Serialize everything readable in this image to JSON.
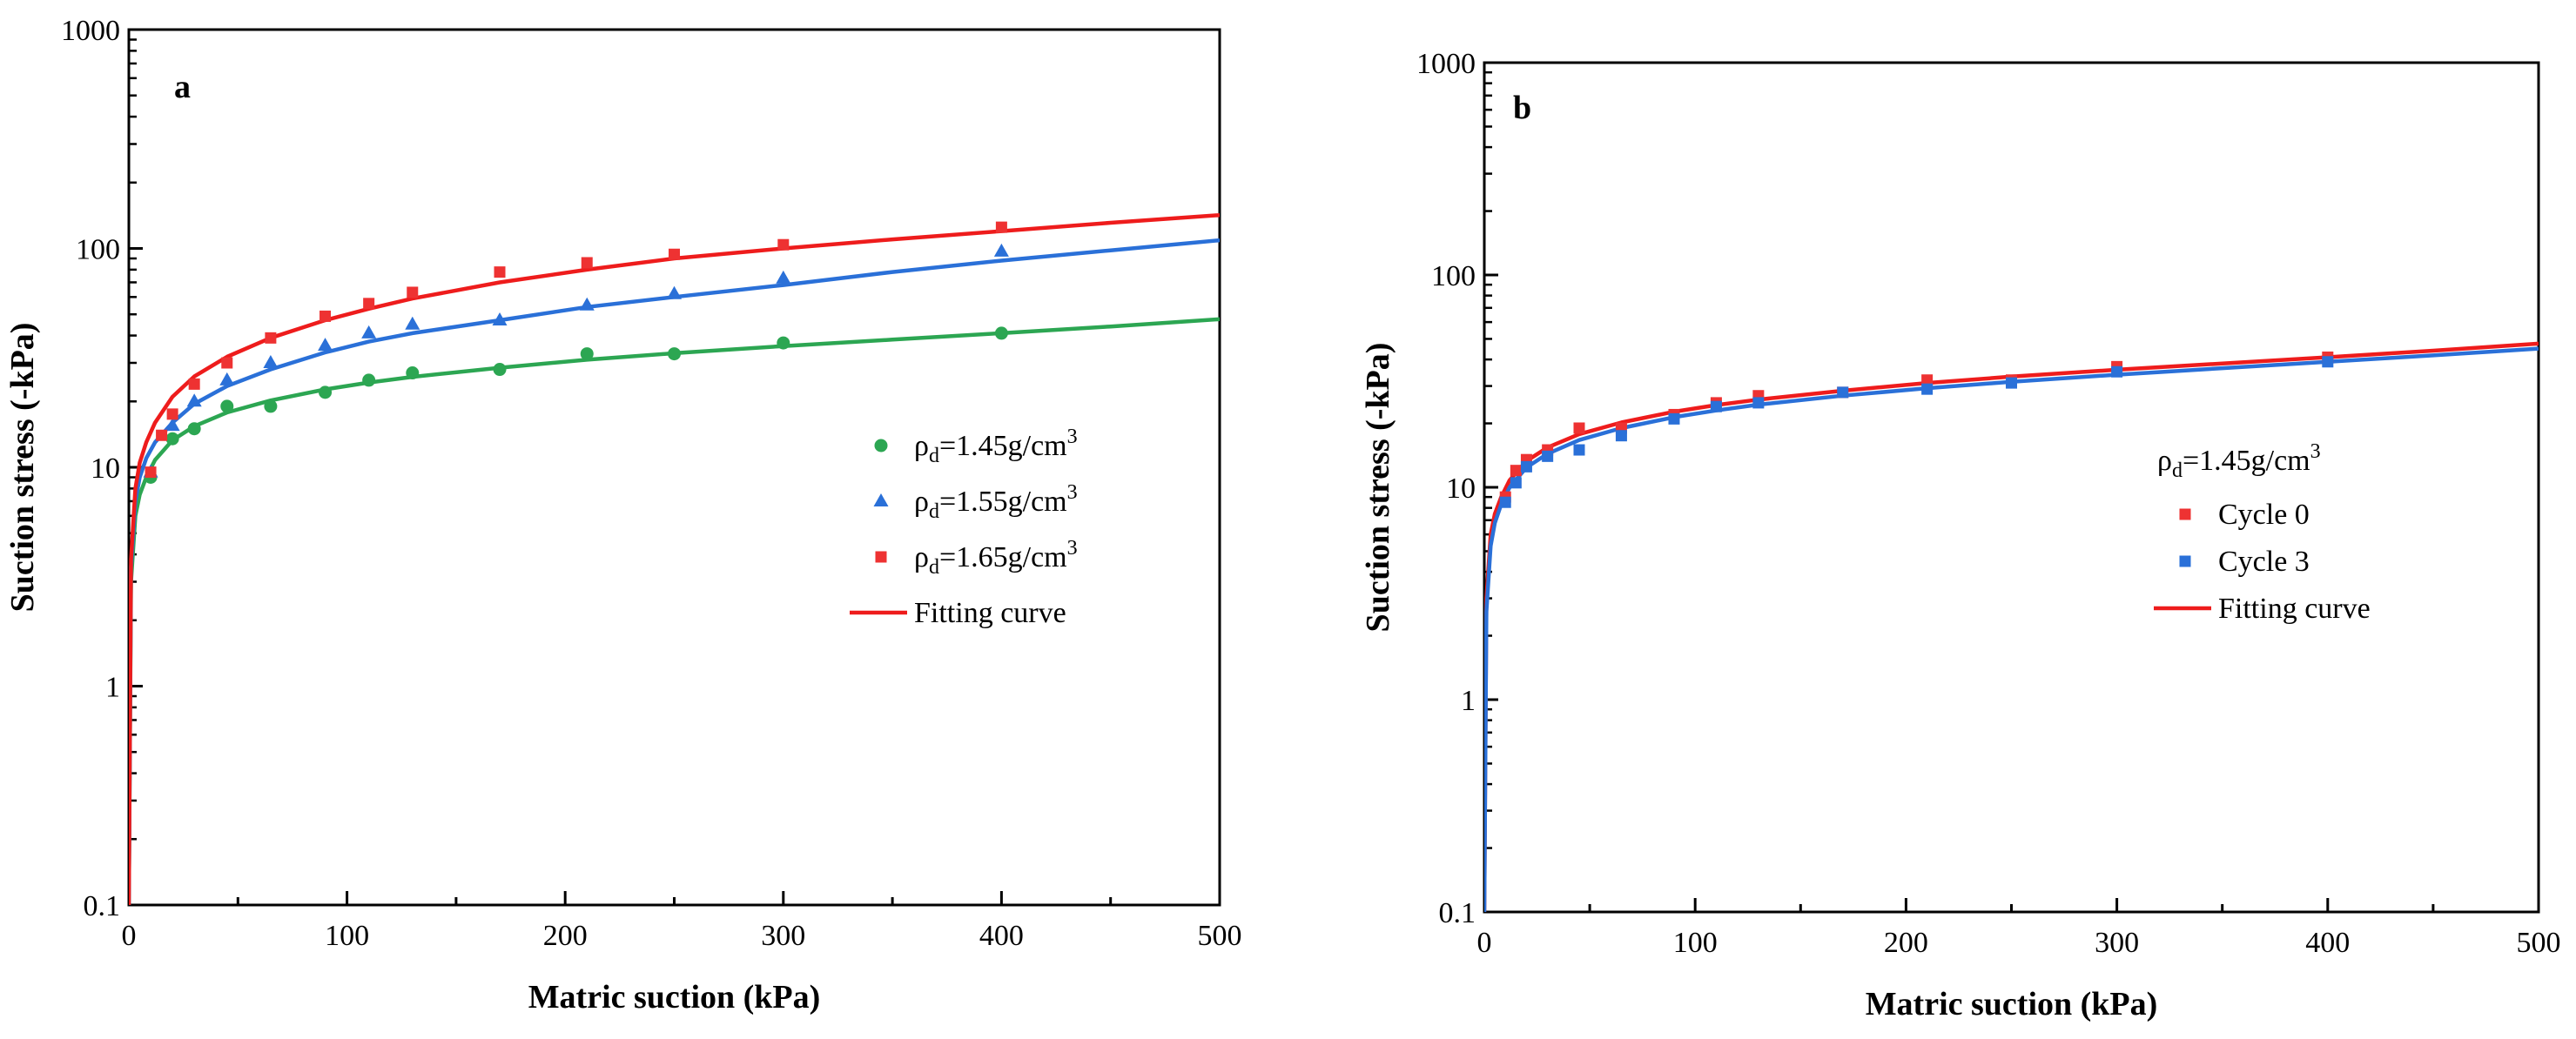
{
  "chart_data": [
    {
      "type": "scatter",
      "panel_label": "a",
      "xlabel": "Matric suction (kPa)",
      "ylabel": "Suction stress (-kPa)",
      "xlim": [
        0,
        500
      ],
      "ylim": [
        0.1,
        1000
      ],
      "yscale": "log",
      "x_ticks": [
        0,
        100,
        200,
        300,
        400,
        500
      ],
      "y_ticks": [
        0.1,
        1,
        10,
        100,
        1000
      ],
      "x_tick_labels": [
        "0",
        "100",
        "200",
        "300",
        "400",
        "500"
      ],
      "y_tick_labels": [
        "0.1",
        "1",
        "10",
        "100",
        "1000"
      ],
      "grid": false,
      "legend_position": "center-right",
      "series": [
        {
          "label_main": "ρ",
          "label_sub": "d",
          "label_rest": "=1.45g/cm",
          "label_sup": "3",
          "marker": "circle",
          "color": "#2ca652",
          "x": [
            10,
            20,
            30,
            45,
            65,
            90,
            110,
            130,
            170,
            210,
            250,
            300,
            400
          ],
          "y": [
            9,
            13.5,
            15,
            19,
            19,
            22,
            25,
            27,
            28,
            33,
            33,
            37,
            41
          ],
          "fit": [
            [
              0,
              0.1
            ],
            [
              1,
              3
            ],
            [
              3,
              6
            ],
            [
              5,
              7.5
            ],
            [
              8,
              9
            ],
            [
              12,
              10.8
            ],
            [
              20,
              13.3
            ],
            [
              30,
              15.4
            ],
            [
              45,
              17.8
            ],
            [
              65,
              20.2
            ],
            [
              90,
              22.7
            ],
            [
              110,
              24.4
            ],
            [
              130,
              25.9
            ],
            [
              170,
              28.5
            ],
            [
              210,
              31
            ],
            [
              250,
              33.2
            ],
            [
              300,
              35.8
            ],
            [
              350,
              38.3
            ],
            [
              400,
              41
            ],
            [
              450,
              44
            ],
            [
              500,
              47.5
            ]
          ]
        },
        {
          "label_main": "ρ",
          "label_sub": "d",
          "label_rest": "=1.55g/cm",
          "label_sup": "3",
          "marker": "triangle",
          "color": "#2a70d8",
          "x": [
            10,
            20,
            30,
            45,
            65,
            90,
            110,
            130,
            170,
            210,
            250,
            300,
            400
          ],
          "y": [
            9.5,
            15.5,
            20,
            25,
            30,
            36,
            41,
            45,
            47,
            55,
            62,
            73,
            97
          ],
          "fit": [
            [
              0,
              0.1
            ],
            [
              1,
              3.5
            ],
            [
              3,
              7
            ],
            [
              5,
              9
            ],
            [
              8,
              11
            ],
            [
              12,
              13
            ],
            [
              20,
              16
            ],
            [
              30,
              19.5
            ],
            [
              45,
              23.5
            ],
            [
              65,
              28
            ],
            [
              90,
              33.5
            ],
            [
              110,
              37.5
            ],
            [
              130,
              41
            ],
            [
              170,
              47
            ],
            [
              210,
              54
            ],
            [
              250,
              60
            ],
            [
              300,
              68
            ],
            [
              350,
              78
            ],
            [
              400,
              88
            ],
            [
              450,
              98
            ],
            [
              500,
              109
            ]
          ]
        },
        {
          "label_main": "ρ",
          "label_sub": "d",
          "label_rest": "=1.65g/cm",
          "label_sup": "3",
          "marker": "square",
          "color": "#ee3232",
          "x": [
            10,
            15,
            20,
            30,
            45,
            65,
            90,
            110,
            130,
            170,
            210,
            250,
            300,
            400
          ],
          "y": [
            9.5,
            14,
            17.5,
            24,
            30,
            39,
            49,
            56,
            63,
            78,
            86,
            94,
            104,
            125
          ],
          "fit": [
            [
              0,
              0.1
            ],
            [
              1,
              3.8
            ],
            [
              3,
              8
            ],
            [
              5,
              10.5
            ],
            [
              8,
              13
            ],
            [
              12,
              16
            ],
            [
              20,
              21
            ],
            [
              30,
              26
            ],
            [
              45,
              32
            ],
            [
              65,
              39
            ],
            [
              90,
              47
            ],
            [
              110,
              53
            ],
            [
              130,
              59
            ],
            [
              170,
              70
            ],
            [
              210,
              80
            ],
            [
              250,
              90
            ],
            [
              300,
              100
            ],
            [
              350,
              110
            ],
            [
              400,
              120
            ],
            [
              450,
              131
            ],
            [
              500,
              142
            ]
          ]
        }
      ],
      "legend_extra": "Fitting curve",
      "fit_color": "#ee1c1c"
    },
    {
      "type": "scatter",
      "panel_label": "b",
      "xlabel": "Matric suction (kPa)",
      "ylabel": "Suction stress (-kPa)",
      "xlim": [
        0,
        500
      ],
      "ylim": [
        0.1,
        1000
      ],
      "yscale": "log",
      "x_ticks": [
        0,
        100,
        200,
        300,
        400,
        500
      ],
      "y_ticks": [
        0.1,
        1,
        10,
        100,
        1000
      ],
      "x_tick_labels": [
        "0",
        "100",
        "200",
        "300",
        "400",
        "500"
      ],
      "y_tick_labels": [
        "0.1",
        "1",
        "10",
        "100",
        "1000"
      ],
      "grid": false,
      "legend_position": "center-right",
      "legend_title_main": "ρ",
      "legend_title_sub": "d",
      "legend_title_rest": "=1.45g/cm",
      "legend_title_sup": "3",
      "series": [
        {
          "name": "Cycle 0",
          "marker": "square",
          "color": "#ee3232",
          "x": [
            10,
            15,
            20,
            30,
            45,
            65,
            90,
            110,
            130,
            170,
            210,
            250,
            300,
            400
          ],
          "y": [
            9,
            12,
            13.5,
            15,
            19,
            19,
            22,
            25,
            27,
            28,
            32,
            32,
            37,
            41
          ],
          "fit": [
            [
              0,
              0.1
            ],
            [
              1,
              3
            ],
            [
              3,
              6
            ],
            [
              5,
              7.5
            ],
            [
              8,
              9
            ],
            [
              12,
              10.8
            ],
            [
              20,
              13.3
            ],
            [
              30,
              15.4
            ],
            [
              45,
              17.8
            ],
            [
              65,
              20.2
            ],
            [
              90,
              22.7
            ],
            [
              110,
              24.4
            ],
            [
              130,
              25.9
            ],
            [
              170,
              28.5
            ],
            [
              210,
              31
            ],
            [
              250,
              33.2
            ],
            [
              300,
              35.8
            ],
            [
              350,
              38.3
            ],
            [
              400,
              41
            ],
            [
              450,
              44
            ],
            [
              500,
              47.5
            ]
          ]
        },
        {
          "name": "Cycle 3",
          "marker": "square",
          "color": "#2a70d8",
          "x": [
            10,
            15,
            20,
            30,
            45,
            65,
            90,
            110,
            130,
            170,
            210,
            250,
            300,
            400
          ],
          "y": [
            8.5,
            10.5,
            12.5,
            14,
            15,
            17.5,
            21,
            24,
            25,
            28,
            29,
            31,
            35,
            39
          ],
          "fit": [
            [
              0,
              0.1
            ],
            [
              1,
              2.6
            ],
            [
              3,
              5.3
            ],
            [
              5,
              6.8
            ],
            [
              8,
              8.3
            ],
            [
              12,
              10
            ],
            [
              20,
              12.4
            ],
            [
              30,
              14.4
            ],
            [
              45,
              16.7
            ],
            [
              65,
              19
            ],
            [
              90,
              21.4
            ],
            [
              110,
              23
            ],
            [
              130,
              24.5
            ],
            [
              170,
              27
            ],
            [
              210,
              29.3
            ],
            [
              250,
              31.4
            ],
            [
              300,
              33.9
            ],
            [
              350,
              36.4
            ],
            [
              400,
              39
            ],
            [
              450,
              41.8
            ],
            [
              500,
              45
            ]
          ]
        }
      ],
      "legend_extra": "Fitting curve",
      "fit_color": "#ee1c1c"
    }
  ]
}
